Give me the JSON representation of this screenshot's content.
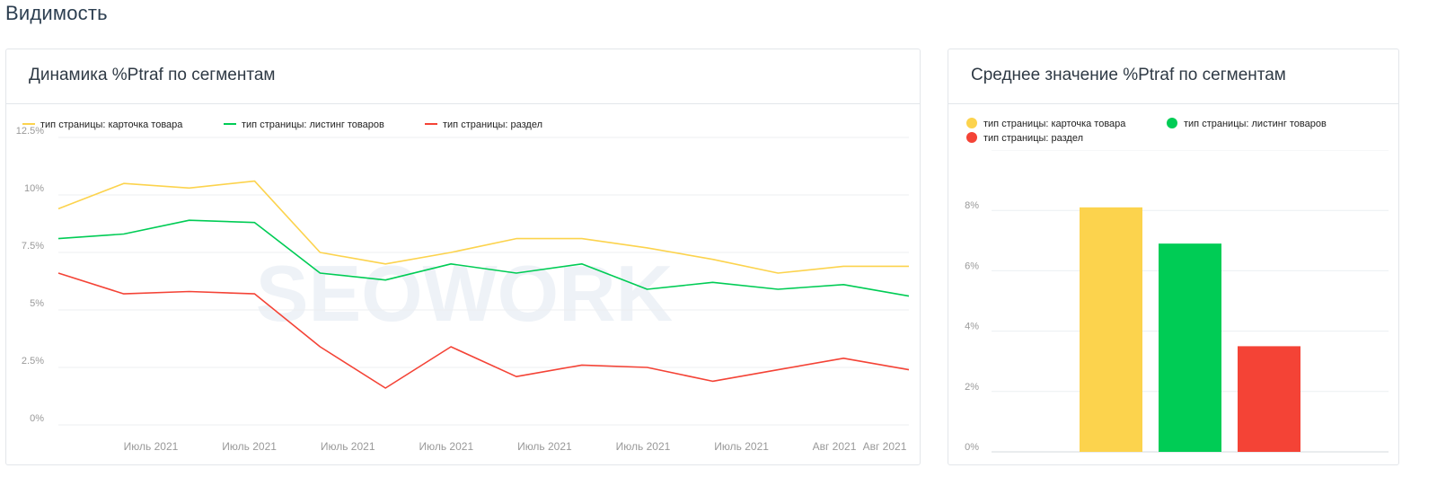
{
  "page": {
    "section_title": "Видимость"
  },
  "watermark": "SEOWORK",
  "colors": {
    "yellow": "#fcd34d",
    "green": "#00cc55",
    "red": "#f44336",
    "grid": "#eceff2",
    "axis_text": "#999999"
  },
  "line_panel": {
    "title": "Динамика %Ptraf по сегментам",
    "legend": [
      "тип страницы: карточка товара",
      "тип страницы: листинг товаров",
      "тип страницы: раздел"
    ]
  },
  "bar_panel": {
    "title": "Среднее значение %Ptraf по сегментам",
    "legend": [
      "тип страницы: карточка товара",
      "тип страницы: листинг товаров",
      "тип страницы: раздел"
    ]
  },
  "chart_data": [
    {
      "type": "line",
      "title": "Динамика %Ptraf по сегментам",
      "y_ticks": [
        "0%",
        "2.5%",
        "5%",
        "7.5%",
        "10%",
        "12.5%"
      ],
      "ylim": [
        0,
        12.5
      ],
      "x_tick_labels": [
        "Июль 2021",
        "Июль 2021",
        "Июль 2021",
        "Июль 2021",
        "Июль 2021",
        "Июль 2021",
        "Июль 2021",
        "Авг 2021",
        "Авг 2021"
      ],
      "grid": true,
      "legend_position": "top-left",
      "series": [
        {
          "name": "тип страницы: карточка товара",
          "color": "#fcd34d",
          "values": [
            9.4,
            10.5,
            10.3,
            10.6,
            7.5,
            7.0,
            7.5,
            8.1,
            8.1,
            7.7,
            7.2,
            6.6,
            6.9,
            6.9
          ]
        },
        {
          "name": "тип страницы: листинг товаров",
          "color": "#00cc55",
          "values": [
            8.1,
            8.3,
            8.9,
            8.8,
            6.6,
            6.3,
            7.0,
            6.6,
            7.0,
            5.9,
            6.2,
            5.9,
            6.1,
            5.6
          ]
        },
        {
          "name": "тип страницы: раздел",
          "color": "#f44336",
          "values": [
            6.6,
            5.7,
            5.8,
            5.7,
            3.4,
            1.6,
            3.4,
            2.1,
            2.6,
            2.5,
            1.9,
            2.4,
            2.9,
            2.4
          ]
        }
      ]
    },
    {
      "type": "bar",
      "title": "Среднее значение %Ptraf по сегментам",
      "y_ticks": [
        "0%",
        "2%",
        "4%",
        "6%",
        "8%"
      ],
      "ylim": [
        0,
        10
      ],
      "grid": true,
      "legend_position": "top-left",
      "categories": [
        "тип страницы: карточка товара",
        "тип страницы: листинг товаров",
        "тип страницы: раздел"
      ],
      "values": [
        8.1,
        6.9,
        3.5
      ],
      "colors": [
        "#fcd34d",
        "#00cc55",
        "#f44336"
      ]
    }
  ]
}
